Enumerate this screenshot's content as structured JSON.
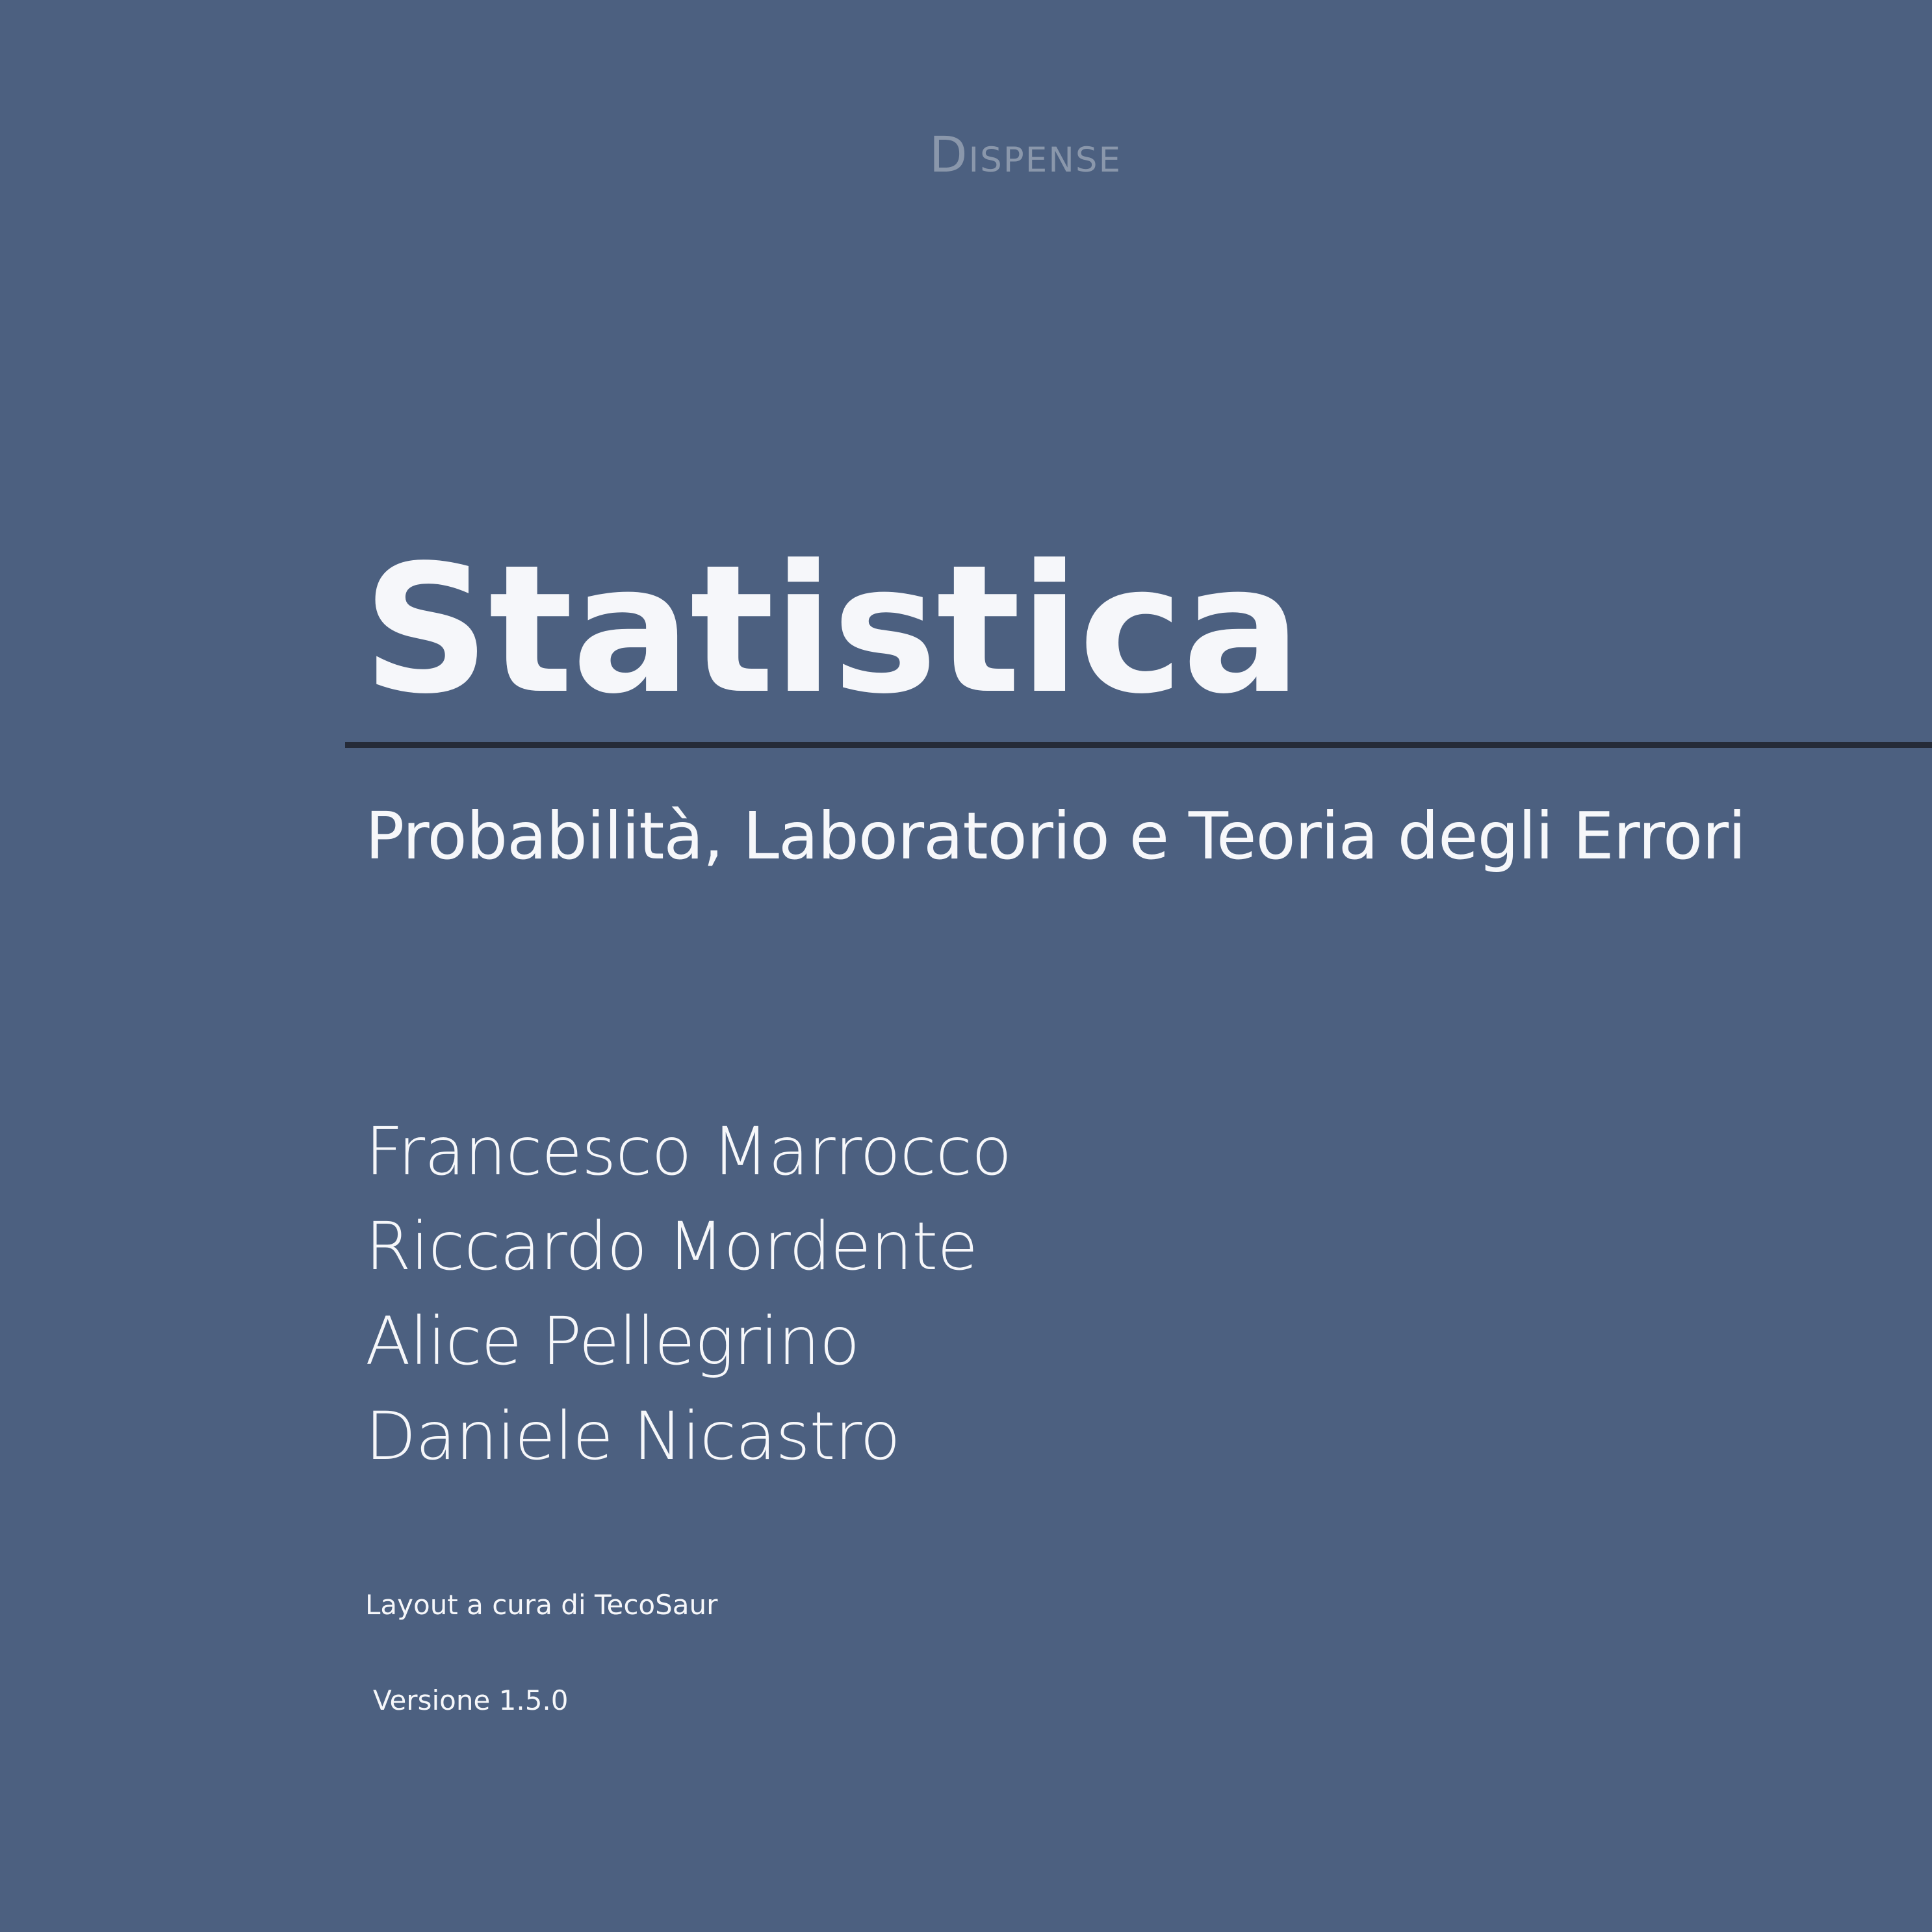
{
  "cover": {
    "series_label": "Dispense",
    "title": "Statistica",
    "subtitle": "Probabilità, Laboratorio e Teoria degli Errori",
    "authors": [
      "Francesco Marrocco",
      "Riccardo Mordente",
      "Alice Pellegrino",
      "Daniele Nicastro"
    ],
    "layout_credit": "Layout a cura di TecoSaur",
    "version": "Versione 1.5.0"
  },
  "colors": {
    "background": "#4c6080",
    "text": "#f6f7fa",
    "series_label": "#8a97ab",
    "rule": "#252b38"
  }
}
